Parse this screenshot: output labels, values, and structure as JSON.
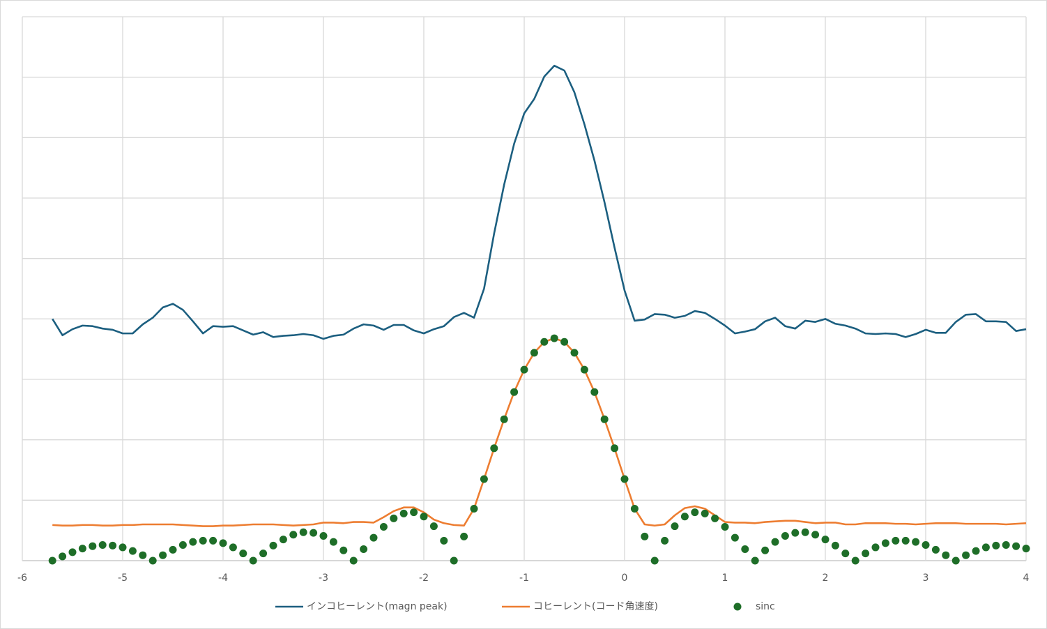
{
  "chart_data": {
    "type": "scatter",
    "x": [
      -5.7,
      -5.6,
      -5.5,
      -5.4,
      -5.3,
      -5.2,
      -5.1,
      -5.0,
      -4.9,
      -4.8,
      -4.7,
      -4.6,
      -4.5,
      -4.4,
      -4.3,
      -4.2,
      -4.1,
      -4.0,
      -3.9,
      -3.8,
      -3.7,
      -3.6,
      -3.5,
      -3.4,
      -3.3,
      -3.2,
      -3.1,
      -3.0,
      -2.9,
      -2.8,
      -2.7,
      -2.6,
      -2.5,
      -2.4,
      -2.3,
      -2.2,
      -2.1,
      -2.0,
      -1.9,
      -1.8,
      -1.7,
      -1.6,
      -1.5,
      -1.4,
      -1.3,
      -1.2,
      -1.1,
      -1.0,
      -0.9,
      -0.8,
      -0.7,
      -0.6,
      -0.5,
      -0.4,
      -0.3,
      -0.2,
      -0.1,
      0,
      0.1,
      0.2,
      0.3,
      0.4,
      0.5,
      0.6,
      0.7,
      0.8,
      0.9,
      1.0,
      1.1,
      1.2,
      1.3,
      1.4,
      1.5,
      1.6,
      1.7,
      1.8,
      1.9,
      2.0,
      2.1,
      2.2,
      2.3,
      2.4,
      2.5,
      2.6,
      2.7,
      2.8,
      2.9,
      3.0,
      3.1,
      3.2,
      3.3,
      3.4,
      3.5,
      3.6,
      3.7,
      3.8,
      3.9,
      4.0
    ],
    "series": [
      {
        "name": "インコヒーレント(magn peak)",
        "color": "#1c5f80",
        "mode": "line",
        "values": [
          4.0,
          3.73,
          3.83,
          3.89,
          3.88,
          3.84,
          3.82,
          3.76,
          3.76,
          3.91,
          4.02,
          4.19,
          4.25,
          4.15,
          3.96,
          3.76,
          3.88,
          3.87,
          3.88,
          3.81,
          3.74,
          3.78,
          3.7,
          3.72,
          3.73,
          3.75,
          3.73,
          3.67,
          3.72,
          3.74,
          3.84,
          3.91,
          3.89,
          3.82,
          3.9,
          3.9,
          3.81,
          3.76,
          3.83,
          3.88,
          4.03,
          4.1,
          4.02,
          4.5,
          5.41,
          6.22,
          6.9,
          7.4,
          7.64,
          8.01,
          8.19,
          8.11,
          7.75,
          7.22,
          6.62,
          5.93,
          5.18,
          4.47,
          3.97,
          3.99,
          4.08,
          4.07,
          4.02,
          4.05,
          4.13,
          4.1,
          4.0,
          3.89,
          3.76,
          3.79,
          3.83,
          3.96,
          4.02,
          3.88,
          3.84,
          3.97,
          3.95,
          4.0,
          3.92,
          3.89,
          3.84,
          3.76,
          3.75,
          3.76,
          3.75,
          3.7,
          3.75,
          3.82,
          3.77,
          3.77,
          3.95,
          4.07,
          4.08,
          3.96,
          3.96,
          3.95,
          3.8,
          3.83
        ]
      },
      {
        "name": "コヒーレント(コード角速度)",
        "color": "#ed7d31",
        "mode": "line",
        "values": [
          0.59,
          0.58,
          0.58,
          0.59,
          0.59,
          0.58,
          0.58,
          0.59,
          0.59,
          0.6,
          0.6,
          0.6,
          0.6,
          0.59,
          0.58,
          0.57,
          0.57,
          0.58,
          0.58,
          0.59,
          0.6,
          0.6,
          0.6,
          0.59,
          0.58,
          0.59,
          0.6,
          0.63,
          0.63,
          0.62,
          0.64,
          0.64,
          0.63,
          0.72,
          0.82,
          0.88,
          0.88,
          0.8,
          0.68,
          0.62,
          0.59,
          0.58,
          0.86,
          1.35,
          1.86,
          2.34,
          2.79,
          3.16,
          3.44,
          3.62,
          3.68,
          3.62,
          3.44,
          3.16,
          2.79,
          2.34,
          1.86,
          1.35,
          0.86,
          0.6,
          0.58,
          0.6,
          0.75,
          0.87,
          0.9,
          0.86,
          0.75,
          0.64,
          0.63,
          0.63,
          0.62,
          0.64,
          0.65,
          0.66,
          0.66,
          0.64,
          0.62,
          0.63,
          0.63,
          0.6,
          0.6,
          0.62,
          0.62,
          0.62,
          0.61,
          0.61,
          0.6,
          0.61,
          0.62,
          0.62,
          0.62,
          0.61,
          0.61,
          0.61,
          0.61,
          0.6,
          0.61,
          0.62
        ]
      },
      {
        "name": "sinc",
        "color": "#1e6e28",
        "mode": "markers",
        "values": [
          0,
          0.07,
          0.14,
          0.2,
          0.24,
          0.26,
          0.25,
          0.22,
          0.16,
          0.09,
          0,
          0.09,
          0.18,
          0.26,
          0.31,
          0.33,
          0.33,
          0.29,
          0.22,
          0.12,
          0,
          0.12,
          0.25,
          0.35,
          0.43,
          0.47,
          0.46,
          0.41,
          0.31,
          0.17,
          0,
          0.19,
          0.38,
          0.56,
          0.7,
          0.78,
          0.8,
          0.73,
          0.57,
          0.33,
          0,
          0.4,
          0.86,
          1.35,
          1.86,
          2.34,
          2.79,
          3.16,
          3.44,
          3.62,
          3.68,
          3.62,
          3.44,
          3.16,
          2.79,
          2.34,
          1.86,
          1.35,
          0.86,
          0.4,
          0,
          0.33,
          0.57,
          0.73,
          0.8,
          0.78,
          0.7,
          0.56,
          0.38,
          0.19,
          0,
          0.17,
          0.31,
          0.41,
          0.46,
          0.47,
          0.43,
          0.35,
          0.25,
          0.12,
          0,
          0.12,
          0.22,
          0.29,
          0.33,
          0.33,
          0.31,
          0.26,
          0.18,
          0.09,
          0,
          0.09,
          0.16,
          0.22,
          0.25,
          0.26,
          0.24,
          0.2
        ]
      }
    ],
    "xlim": [
      -6,
      4
    ],
    "xticks": [
      -6,
      -5,
      -4,
      -3,
      -2,
      -1,
      0,
      1,
      2,
      3,
      4
    ],
    "ylim": [
      0,
      9
    ],
    "yticks": [
      0,
      1,
      2,
      3,
      4,
      5,
      6,
      7,
      8,
      9
    ],
    "y_tick_labels": false,
    "grid": true,
    "legend": "bottom"
  }
}
